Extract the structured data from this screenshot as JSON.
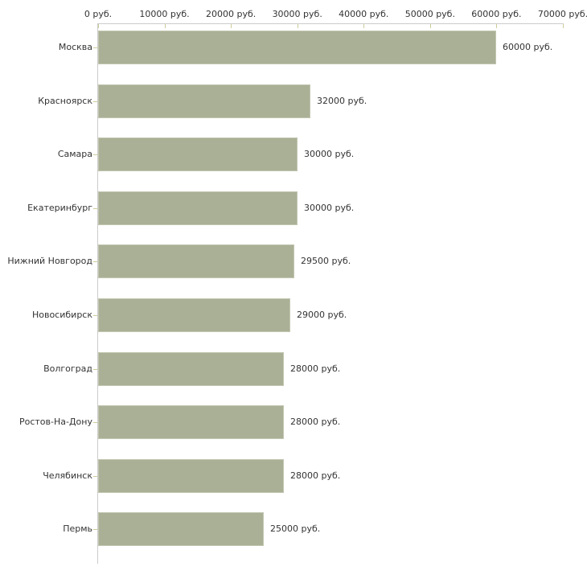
{
  "chart_data": {
    "type": "bar",
    "orientation": "horizontal",
    "title": "",
    "categories": [
      "Москва",
      "Красноярск",
      "Самара",
      "Екатеринбург",
      "Нижний Новгород",
      "Новосибирск",
      "Волгоград",
      "Ростов-На-Дону",
      "Челябинск",
      "Пермь"
    ],
    "values": [
      60000,
      32000,
      30000,
      30000,
      29500,
      29000,
      28000,
      28000,
      28000,
      25000
    ],
    "value_labels": [
      "60000 руб.",
      "32000 руб.",
      "30000 руб.",
      "30000 руб.",
      "29500 руб.",
      "29000 руб.",
      "28000 руб.",
      "28000 руб.",
      "28000 руб.",
      "25000 руб."
    ],
    "x_axis": {
      "position": "top",
      "min": 0,
      "max": 70000,
      "ticks": [
        0,
        10000,
        20000,
        30000,
        40000,
        50000,
        60000,
        70000
      ],
      "tick_labels": [
        "0 руб.",
        "10000 руб.",
        "20000 руб.",
        "30000 руб.",
        "40000 руб.",
        "50000 руб.",
        "60000 руб.",
        "70000 руб."
      ]
    },
    "ylabel": "",
    "xlabel": "",
    "legend": "none",
    "grid": false,
    "colors": {
      "bar_fill": "#aab096",
      "bar_outline": "#c2c7b1",
      "axis_line": "#cccccc",
      "tick_mark": "#cccc99",
      "text": "#333333",
      "background": "#ffffff"
    }
  }
}
